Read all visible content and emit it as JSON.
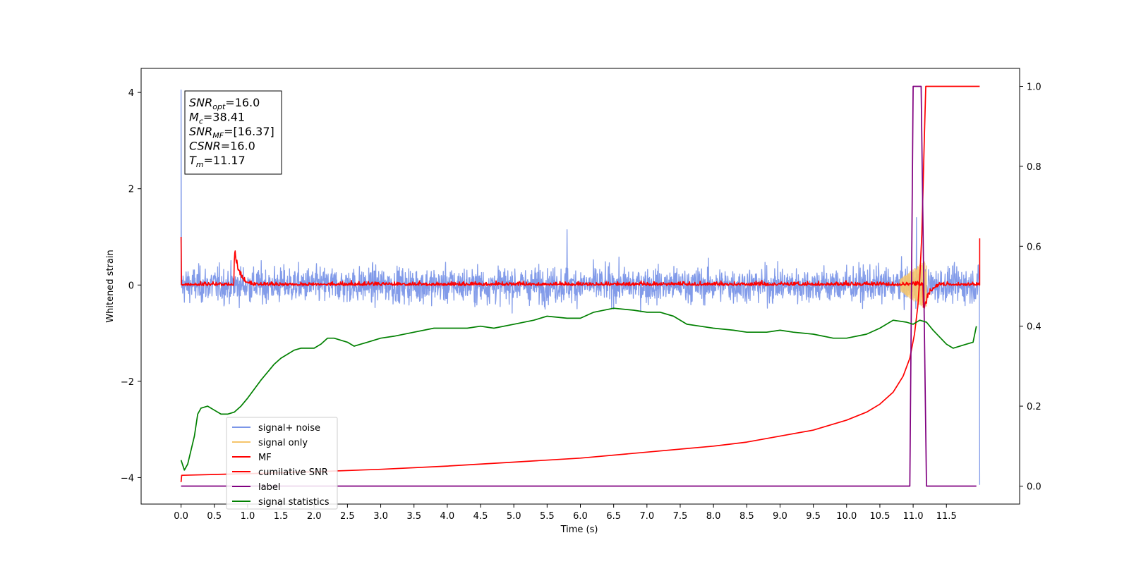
{
  "chart_data": {
    "type": "line",
    "xlabel": "Time (s)",
    "ylabel": "Whitened strain",
    "xlim": [
      -0.6,
      12.6
    ],
    "ylim_left": [
      -4.55,
      4.5
    ],
    "ylim_right": [
      -0.045,
      1.045
    ],
    "x_ticks": [
      "0.0",
      "0.5",
      "1.0",
      "1.5",
      "2.0",
      "2.5",
      "3.0",
      "3.5",
      "4.0",
      "4.5",
      "5.0",
      "5.5",
      "6.0",
      "6.5",
      "7.0",
      "7.5",
      "8.0",
      "8.5",
      "9.0",
      "9.5",
      "10.0",
      "10.5",
      "11.0",
      "11.5"
    ],
    "y_ticks_left": [
      "4",
      "2",
      "0",
      "−2",
      "−4"
    ],
    "y_ticks_right": [
      "1.0",
      "0.8",
      "0.6",
      "0.4",
      "0.2",
      "0.0"
    ],
    "grid": false,
    "legend_position": "lower-left",
    "annotations": [
      {
        "symbol": "SNR",
        "sub": "opt",
        "value": "=16.0"
      },
      {
        "symbol": "M",
        "sub": "c",
        "value": "=38.41"
      },
      {
        "symbol": "SNR",
        "sub": "MF",
        "value": "=[16.37]"
      },
      {
        "symbol": "CSNR",
        "sub": "",
        "value": "=16.0"
      },
      {
        "symbol": "T",
        "sub": "m",
        "value": "=11.17"
      }
    ],
    "series": [
      {
        "name": "signal+ noise",
        "color": "#7b96e8",
        "axis": "left",
        "style": "noise",
        "band": [
          -0.6,
          0.6
        ],
        "spikes": [
          [
            0.0,
            4.05
          ],
          [
            5.8,
            1.15
          ],
          [
            11.05,
            1.4
          ],
          [
            12.0,
            -4.15
          ]
        ]
      },
      {
        "name": "signal only",
        "color": "#f5c56b",
        "axis": "left",
        "style": "chirp",
        "onset": 10.8,
        "end": 11.2,
        "amplitude": 0.4
      },
      {
        "name": "MF",
        "color": "#ff0000",
        "axis": "left",
        "style": "mf",
        "band": [
          -0.08,
          0.12
        ],
        "bumps": [
          [
            0.82,
            0.68
          ],
          [
            11.17,
            -0.6
          ]
        ],
        "end_value": 0.97
      },
      {
        "name": "cumilative SNR",
        "color": "#ff0000",
        "axis": "right",
        "points": [
          [
            0.0,
            0.01
          ],
          [
            0.01,
            0.027
          ],
          [
            0.5,
            0.029
          ],
          [
            1.0,
            0.031
          ],
          [
            2.0,
            0.036
          ],
          [
            3.0,
            0.042
          ],
          [
            4.0,
            0.05
          ],
          [
            5.0,
            0.06
          ],
          [
            6.0,
            0.07
          ],
          [
            7.0,
            0.085
          ],
          [
            8.0,
            0.1
          ],
          [
            8.5,
            0.11
          ],
          [
            9.0,
            0.125
          ],
          [
            9.5,
            0.14
          ],
          [
            10.0,
            0.165
          ],
          [
            10.3,
            0.185
          ],
          [
            10.5,
            0.205
          ],
          [
            10.7,
            0.235
          ],
          [
            10.85,
            0.275
          ],
          [
            10.95,
            0.32
          ],
          [
            11.02,
            0.38
          ],
          [
            11.07,
            0.45
          ],
          [
            11.1,
            0.52
          ],
          [
            11.13,
            0.63
          ],
          [
            11.15,
            0.75
          ],
          [
            11.17,
            0.88
          ],
          [
            11.19,
            1.0
          ],
          [
            11.5,
            1.0
          ],
          [
            12.0,
            1.0
          ]
        ]
      },
      {
        "name": "label",
        "color": "#800080",
        "axis": "right",
        "points": [
          [
            0.0,
            0.0
          ],
          [
            10.95,
            0.0
          ],
          [
            11.0,
            1.0
          ],
          [
            11.12,
            1.0
          ],
          [
            11.2,
            0.0
          ],
          [
            11.95,
            0.0
          ]
        ]
      },
      {
        "name": "signal statistics",
        "color": "#008000",
        "axis": "right",
        "points": [
          [
            0.0,
            0.065
          ],
          [
            0.05,
            0.04
          ],
          [
            0.1,
            0.055
          ],
          [
            0.2,
            0.125
          ],
          [
            0.25,
            0.18
          ],
          [
            0.3,
            0.195
          ],
          [
            0.4,
            0.2
          ],
          [
            0.5,
            0.19
          ],
          [
            0.6,
            0.18
          ],
          [
            0.7,
            0.18
          ],
          [
            0.8,
            0.185
          ],
          [
            0.9,
            0.2
          ],
          [
            1.0,
            0.22
          ],
          [
            1.2,
            0.265
          ],
          [
            1.4,
            0.305
          ],
          [
            1.5,
            0.32
          ],
          [
            1.7,
            0.34
          ],
          [
            1.8,
            0.345
          ],
          [
            2.0,
            0.345
          ],
          [
            2.1,
            0.355
          ],
          [
            2.2,
            0.37
          ],
          [
            2.3,
            0.37
          ],
          [
            2.5,
            0.36
          ],
          [
            2.6,
            0.35
          ],
          [
            2.8,
            0.36
          ],
          [
            3.0,
            0.37
          ],
          [
            3.2,
            0.375
          ],
          [
            3.5,
            0.385
          ],
          [
            3.8,
            0.395
          ],
          [
            4.0,
            0.395
          ],
          [
            4.3,
            0.395
          ],
          [
            4.5,
            0.4
          ],
          [
            4.7,
            0.395
          ],
          [
            5.0,
            0.405
          ],
          [
            5.3,
            0.415
          ],
          [
            5.5,
            0.425
          ],
          [
            5.8,
            0.42
          ],
          [
            6.0,
            0.42
          ],
          [
            6.2,
            0.435
          ],
          [
            6.5,
            0.445
          ],
          [
            6.8,
            0.44
          ],
          [
            7.0,
            0.435
          ],
          [
            7.2,
            0.435
          ],
          [
            7.4,
            0.425
          ],
          [
            7.6,
            0.405
          ],
          [
            7.8,
            0.4
          ],
          [
            8.0,
            0.395
          ],
          [
            8.3,
            0.39
          ],
          [
            8.5,
            0.385
          ],
          [
            8.8,
            0.385
          ],
          [
            9.0,
            0.39
          ],
          [
            9.2,
            0.385
          ],
          [
            9.5,
            0.38
          ],
          [
            9.8,
            0.37
          ],
          [
            10.0,
            0.37
          ],
          [
            10.3,
            0.38
          ],
          [
            10.5,
            0.395
          ],
          [
            10.7,
            0.415
          ],
          [
            10.9,
            0.41
          ],
          [
            11.0,
            0.405
          ],
          [
            11.1,
            0.415
          ],
          [
            11.2,
            0.41
          ],
          [
            11.3,
            0.39
          ],
          [
            11.5,
            0.355
          ],
          [
            11.6,
            0.345
          ],
          [
            11.8,
            0.355
          ],
          [
            11.9,
            0.36
          ],
          [
            11.95,
            0.4
          ]
        ]
      }
    ]
  }
}
